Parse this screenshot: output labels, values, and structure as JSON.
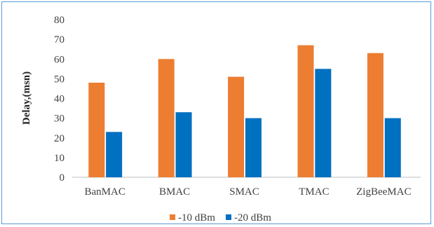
{
  "chart_data": {
    "type": "bar",
    "categories": [
      "BanMAC",
      "BMAC",
      "SMAC",
      "TMAC",
      "ZigBeeMAC"
    ],
    "series": [
      {
        "name": "-10 dBm",
        "values": [
          48,
          60,
          51,
          67,
          63
        ],
        "color": "#ed7d31"
      },
      {
        "name": "-20 dBm",
        "values": [
          23,
          33,
          30,
          55,
          30
        ],
        "color": "#0070c0"
      }
    ],
    "title": "",
    "xlabel": "",
    "ylabel": "Delay,(msn)",
    "ylim": [
      0,
      80
    ],
    "yticks": [
      0,
      10,
      20,
      30,
      40,
      50,
      60,
      70,
      80
    ],
    "grid": false,
    "legend_position": "bottom"
  }
}
